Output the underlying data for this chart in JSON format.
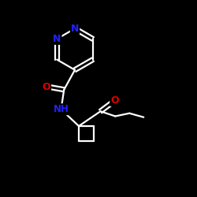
{
  "bg_color": "#000000",
  "bond_color": "#ffffff",
  "N_color": "#2222ff",
  "O_color": "#dd0000",
  "figsize": [
    2.5,
    2.5
  ],
  "dpi": 100,
  "xlim": [
    0,
    10
  ],
  "ylim": [
    0,
    10
  ]
}
